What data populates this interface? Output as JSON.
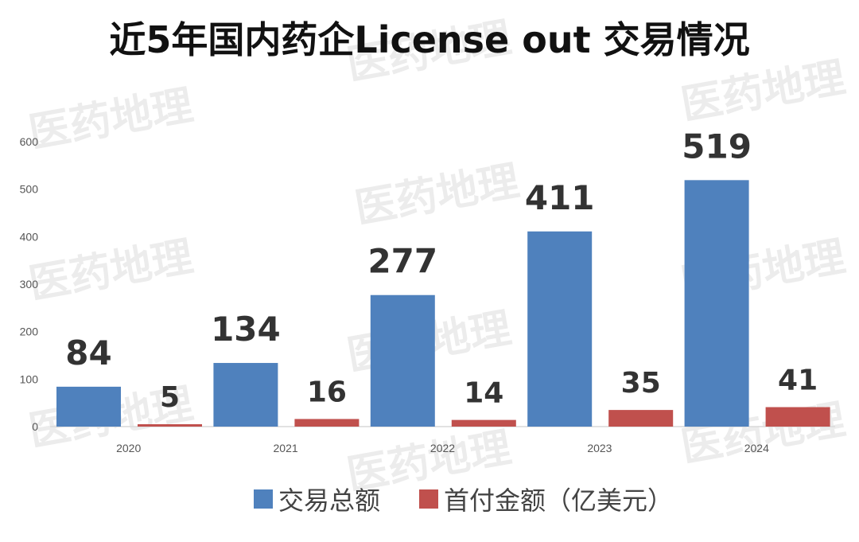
{
  "chart_data": {
    "type": "bar",
    "title": "近5年国内药企License out 交易情况",
    "categories": [
      "2020",
      "2021",
      "2022",
      "2023",
      "2024"
    ],
    "series": [
      {
        "name": "交易总额",
        "values": [
          84,
          134,
          277,
          411,
          519
        ],
        "color": "#4f81bd"
      },
      {
        "name": "首付金额（亿美元）",
        "values": [
          5,
          16,
          14,
          35,
          41
        ],
        "color": "#c0504d"
      }
    ],
    "ylim": [
      0,
      600
    ],
    "yticks": [
      0,
      100,
      200,
      300,
      400,
      500,
      600
    ],
    "xlabel": "",
    "ylabel": "",
    "grid": false,
    "legend_position": "bottom",
    "watermark": "医药地理"
  }
}
